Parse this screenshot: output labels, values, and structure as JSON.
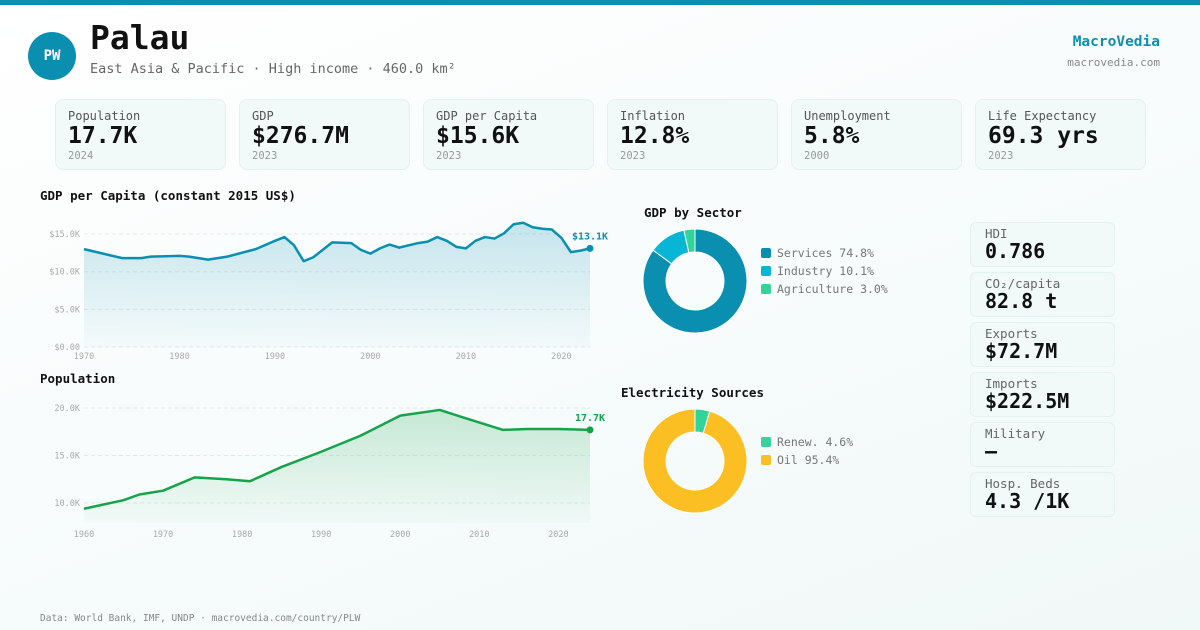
{
  "header": {
    "initials": "PW",
    "title": "Palau",
    "subtitle": "East Asia & Pacific · High income · 460.0 km²",
    "brand": "MacroVedia",
    "brand_url": "macrovedia.com"
  },
  "kpis": [
    {
      "label": "Population",
      "value": "17.7K",
      "year": "2024"
    },
    {
      "label": "GDP",
      "value": "$276.7M",
      "year": "2023"
    },
    {
      "label": "GDP per Capita",
      "value": "$15.6K",
      "year": "2023"
    },
    {
      "label": "Inflation",
      "value": "12.8%",
      "year": "2023"
    },
    {
      "label": "Unemployment",
      "value": "5.8%",
      "year": "2000"
    },
    {
      "label": "Life Expectancy",
      "value": "69.3 yrs",
      "year": "2023"
    }
  ],
  "side": [
    {
      "label": "HDI",
      "value": "0.786"
    },
    {
      "label": "CO₂/capita",
      "value": "82.8 t"
    },
    {
      "label": "Exports",
      "value": "$72.7M"
    },
    {
      "label": "Imports",
      "value": "$222.5M"
    },
    {
      "label": "Military",
      "value": "—"
    },
    {
      "label": "Hosp. Beds",
      "value": "4.3 /1K"
    }
  ],
  "footer": "Data: World Bank, IMF, UNDP · macrovedia.com/country/PLW",
  "chart_data": [
    {
      "type": "area",
      "title": "GDP per Capita (constant 2015 US$)",
      "color": "#0a8fb0",
      "end_label": "$13.1K",
      "yticks": [
        "$0.00",
        "$5.0K",
        "$10.0K",
        "$15.0K"
      ],
      "ytick_values": [
        0,
        5,
        10,
        15
      ],
      "xticks": [
        "1970",
        "1980",
        "1990",
        "2000",
        "2010",
        "2020"
      ],
      "ylim": [
        0,
        17
      ],
      "xlim": [
        1970,
        2023
      ],
      "unit": "thousand US$",
      "x": [
        1970,
        1972,
        1974,
        1976,
        1977,
        1980,
        1981,
        1983,
        1985,
        1988,
        1990,
        1991,
        1992,
        1993,
        1994,
        1996,
        1998,
        1999,
        2000,
        2001,
        2002,
        2003,
        2005,
        2006,
        2007,
        2008,
        2009,
        2010,
        2011,
        2012,
        2013,
        2014,
        2015,
        2016,
        2017,
        2018,
        2019,
        2020,
        2021,
        2022,
        2023
      ],
      "y": [
        13.0,
        12.4,
        11.8,
        11.8,
        12.0,
        12.1,
        12.0,
        11.6,
        12.0,
        13.0,
        14.1,
        14.6,
        13.5,
        11.4,
        11.9,
        13.9,
        13.8,
        12.9,
        12.4,
        13.1,
        13.6,
        13.2,
        13.8,
        14.0,
        14.6,
        14.1,
        13.3,
        13.1,
        14.1,
        14.6,
        14.4,
        15.1,
        16.3,
        16.5,
        15.9,
        15.7,
        15.6,
        14.5,
        12.6,
        12.8,
        13.1
      ]
    },
    {
      "type": "area",
      "title": "Population",
      "color": "#16a34a",
      "end_label": "17.7K",
      "yticks": [
        "10.0K",
        "15.0K",
        "20.0K"
      ],
      "ytick_values": [
        10,
        15,
        20
      ],
      "xticks": [
        "1960",
        "1970",
        "1980",
        "1990",
        "2000",
        "2010",
        "2020"
      ],
      "ylim": [
        7.9,
        21
      ],
      "xlim": [
        1960,
        2024
      ],
      "unit": "thousand",
      "x": [
        1960,
        1965,
        1967,
        1970,
        1974,
        1978,
        1981,
        1985,
        1990,
        1995,
        2000,
        2005,
        2008,
        2013,
        2016,
        2020,
        2024
      ],
      "y": [
        9.4,
        10.3,
        10.9,
        11.3,
        12.7,
        12.5,
        12.3,
        13.8,
        15.4,
        17.1,
        19.2,
        19.8,
        19.0,
        17.7,
        17.8,
        17.8,
        17.7
      ]
    },
    {
      "type": "pie",
      "title": "GDP by Sector",
      "labels": [
        "Services 74.8%",
        "Industry 10.1%",
        "Agriculture 3.0%"
      ],
      "values": [
        74.8,
        10.1,
        3.0
      ],
      "colors": [
        "#0a8fb0",
        "#06b6d4",
        "#34d399"
      ]
    },
    {
      "type": "pie",
      "title": "Electricity Sources",
      "labels": [
        "Renew. 4.6%",
        "Oil 95.4%"
      ],
      "values": [
        4.6,
        95.4
      ],
      "colors": [
        "#34d399",
        "#fbbf24"
      ]
    }
  ]
}
